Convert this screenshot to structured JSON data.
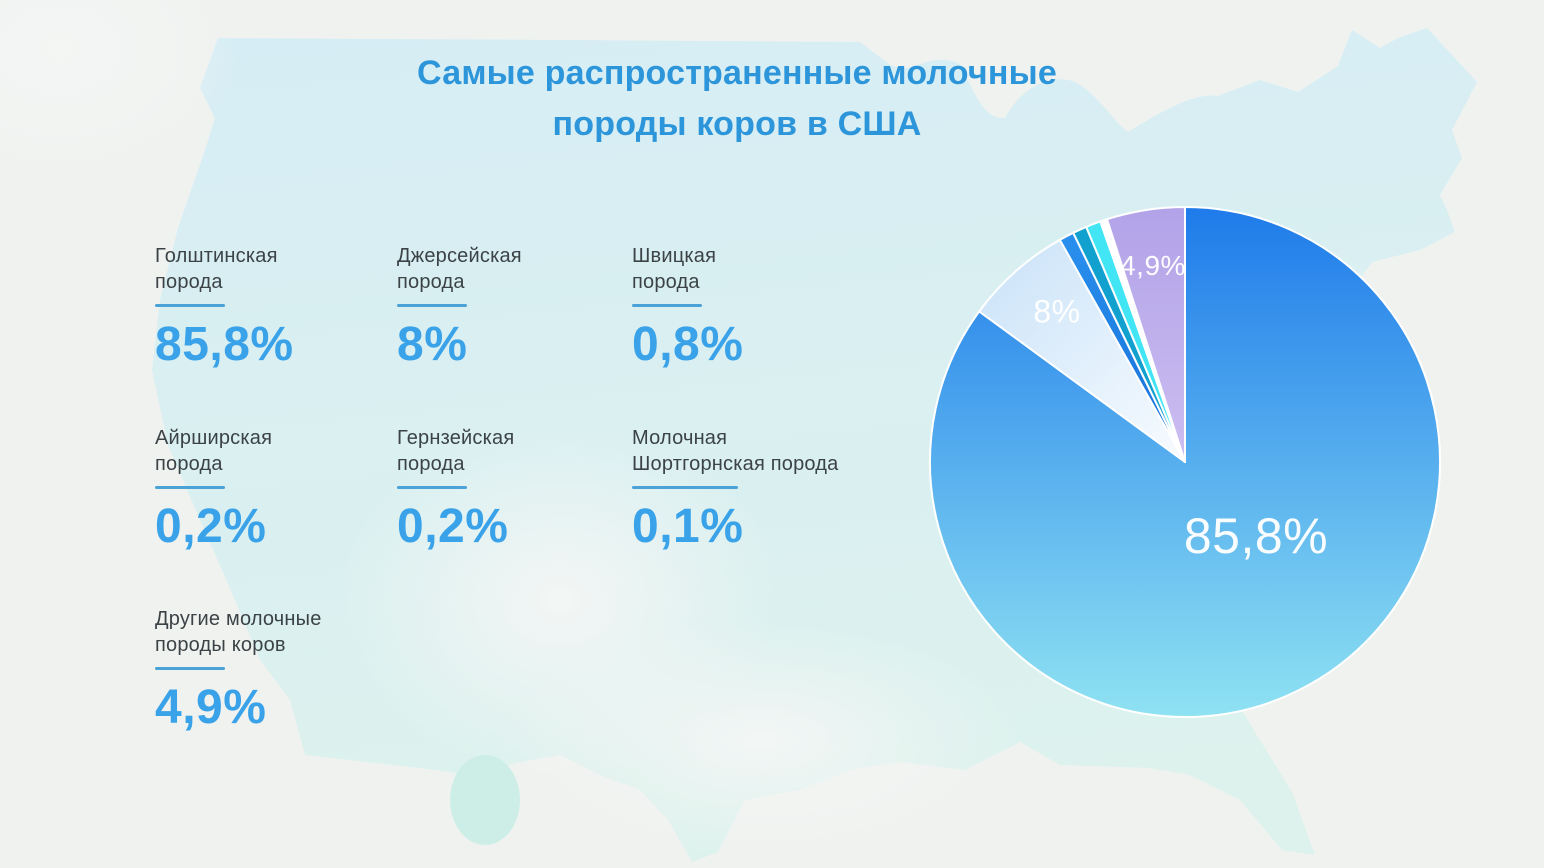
{
  "page": {
    "title_line1": "Самые распространенные молочные",
    "title_line2": "породы коров в США"
  },
  "stats": {
    "items": [
      {
        "label": "Голштинская\nпорода",
        "value": "85,8%"
      },
      {
        "label": "Джерсейская\nпорода",
        "value": "8%"
      },
      {
        "label": "Швицкая\nпорода",
        "value": "0,8%"
      },
      {
        "label": "Айрширская\nпорода",
        "value": "0,2%"
      },
      {
        "label": "Гернзейская\nпорода",
        "value": "0,2%"
      },
      {
        "label": "Молочная\nШортгорнская порода",
        "value": "0,1%"
      },
      {
        "label": "Другие молочные\nпороды коров",
        "value": "4,9%"
      }
    ]
  },
  "chart_data": {
    "type": "pie",
    "title": "Самые распространенные молочные породы коров в США",
    "legend_position": "left text grid with underlined values",
    "start_at": "12 o'clock, clockwise",
    "radius_px": 255,
    "slices": [
      {
        "label": "Голштинская порода",
        "value": 85.8,
        "display": "85,8%",
        "start_deg": 0,
        "sweep_deg": 306.2,
        "color_from": "#1e7bea",
        "color_to": "#8fe2f2",
        "grad": "vertical"
      },
      {
        "label": "Джерсейская порода",
        "value": 8,
        "display": "8%",
        "start_deg": 306.2,
        "sweep_deg": 24.4,
        "color_from": "#f7fbff",
        "color_to": "#c9e2f8",
        "grad": "diag"
      },
      {
        "label": "Швицкая порода",
        "value": 0.8,
        "display": "0,8%",
        "start_deg": 330.6,
        "sweep_deg": 3.4,
        "color_from": "#2a90ee",
        "color_to": "#156fd8",
        "grad": "vertical"
      },
      {
        "label": "Айрширская порода",
        "value": 0.2,
        "display": "0,2%",
        "start_deg": 334.0,
        "sweep_deg": 3.2,
        "color_from": "#12a0cf",
        "color_to": "#12a0cf",
        "grad": "vertical"
      },
      {
        "label": "Гернзейская порода",
        "value": 0.2,
        "display": "0,2%",
        "start_deg": 337.2,
        "sweep_deg": 3.4,
        "color_from": "#41e5f4",
        "color_to": "#41e5f4",
        "grad": "vertical"
      },
      {
        "label": "Молочная Шортгорнская порода",
        "value": 0.1,
        "display": "0,1%",
        "start_deg": 340.6,
        "sweep_deg": 1.6,
        "color_from": "#ffffff",
        "color_to": "#ffffff",
        "grad": "vertical"
      },
      {
        "label": "Другие молочные породы коров",
        "value": 4.9,
        "display": "4,9%",
        "start_deg": 342.2,
        "sweep_deg": 17.8,
        "color_from": "#b2a2e8",
        "color_to": "#ccbef1",
        "grad": "vertical"
      }
    ]
  },
  "palette": {
    "title_blue": "#2d95d9",
    "value_blue": "#3aa2e8",
    "underline_blue": "#4aa2d6",
    "label_gray": "#3c4347",
    "background": "#f0f2f0",
    "map_mint_top": "#d6edf5",
    "map_mint_bottom": "#ddf2ed",
    "pie_label_white": "#ffffff"
  }
}
